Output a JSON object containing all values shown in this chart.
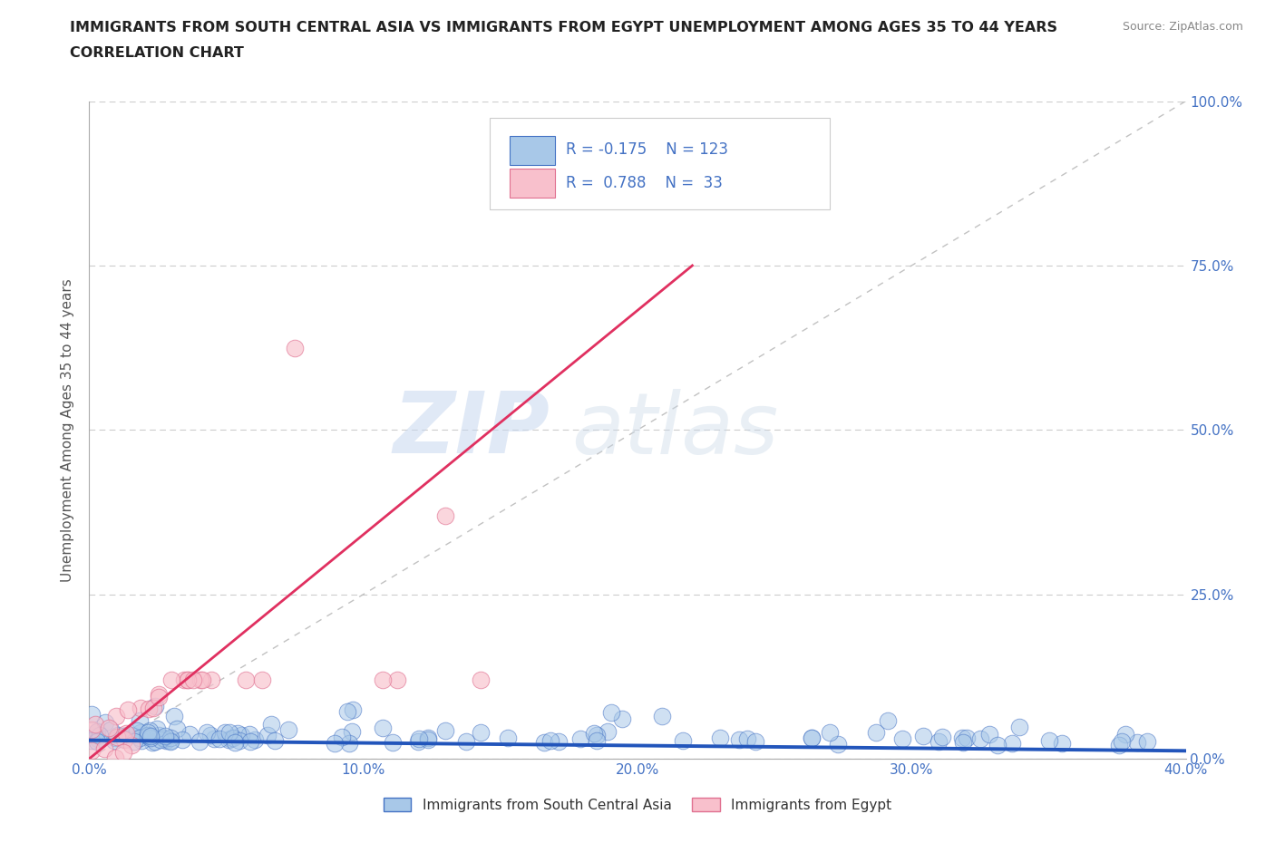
{
  "title_line1": "IMMIGRANTS FROM SOUTH CENTRAL ASIA VS IMMIGRANTS FROM EGYPT UNEMPLOYMENT AMONG AGES 35 TO 44 YEARS",
  "title_line2": "CORRELATION CHART",
  "source_text": "Source: ZipAtlas.com",
  "ylabel": "Unemployment Among Ages 35 to 44 years",
  "xlim": [
    0.0,
    0.4
  ],
  "ylim": [
    0.0,
    1.0
  ],
  "xticks": [
    0.0,
    0.1,
    0.2,
    0.3,
    0.4
  ],
  "yticks": [
    0.0,
    0.25,
    0.5,
    0.75,
    1.0
  ],
  "xtick_labels": [
    "0.0%",
    "10.0%",
    "20.0%",
    "30.0%",
    "40.0%"
  ],
  "ytick_labels": [
    "0.0%",
    "25.0%",
    "50.0%",
    "75.0%",
    "100.0%"
  ],
  "blue_color": "#A8C8E8",
  "blue_edge_color": "#4472C4",
  "pink_color": "#F8C0CC",
  "pink_edge_color": "#E07090",
  "trend_blue_color": "#2255BB",
  "trend_pink_color": "#E03060",
  "diag_line_color": "#BBBBBB",
  "R_blue": -0.175,
  "N_blue": 123,
  "R_pink": 0.788,
  "N_pink": 33,
  "legend_blue_label": "Immigrants from South Central Asia",
  "legend_pink_label": "Immigrants from Egypt",
  "watermark_zip": "ZIP",
  "watermark_atlas": "atlas",
  "background_color": "#FFFFFF",
  "grid_color": "#CCCCCC",
  "title_color": "#222222",
  "axis_tick_color": "#4472C4",
  "ylabel_color": "#555555",
  "source_color": "#888888",
  "legend_text_color": "#333333",
  "pink_trend_x0": 0.0,
  "pink_trend_y0": 0.0,
  "pink_trend_x1": 0.22,
  "pink_trend_y1": 0.75,
  "blue_trend_x0": 0.0,
  "blue_trend_y0": 0.028,
  "blue_trend_x1": 0.4,
  "blue_trend_y1": 0.012
}
